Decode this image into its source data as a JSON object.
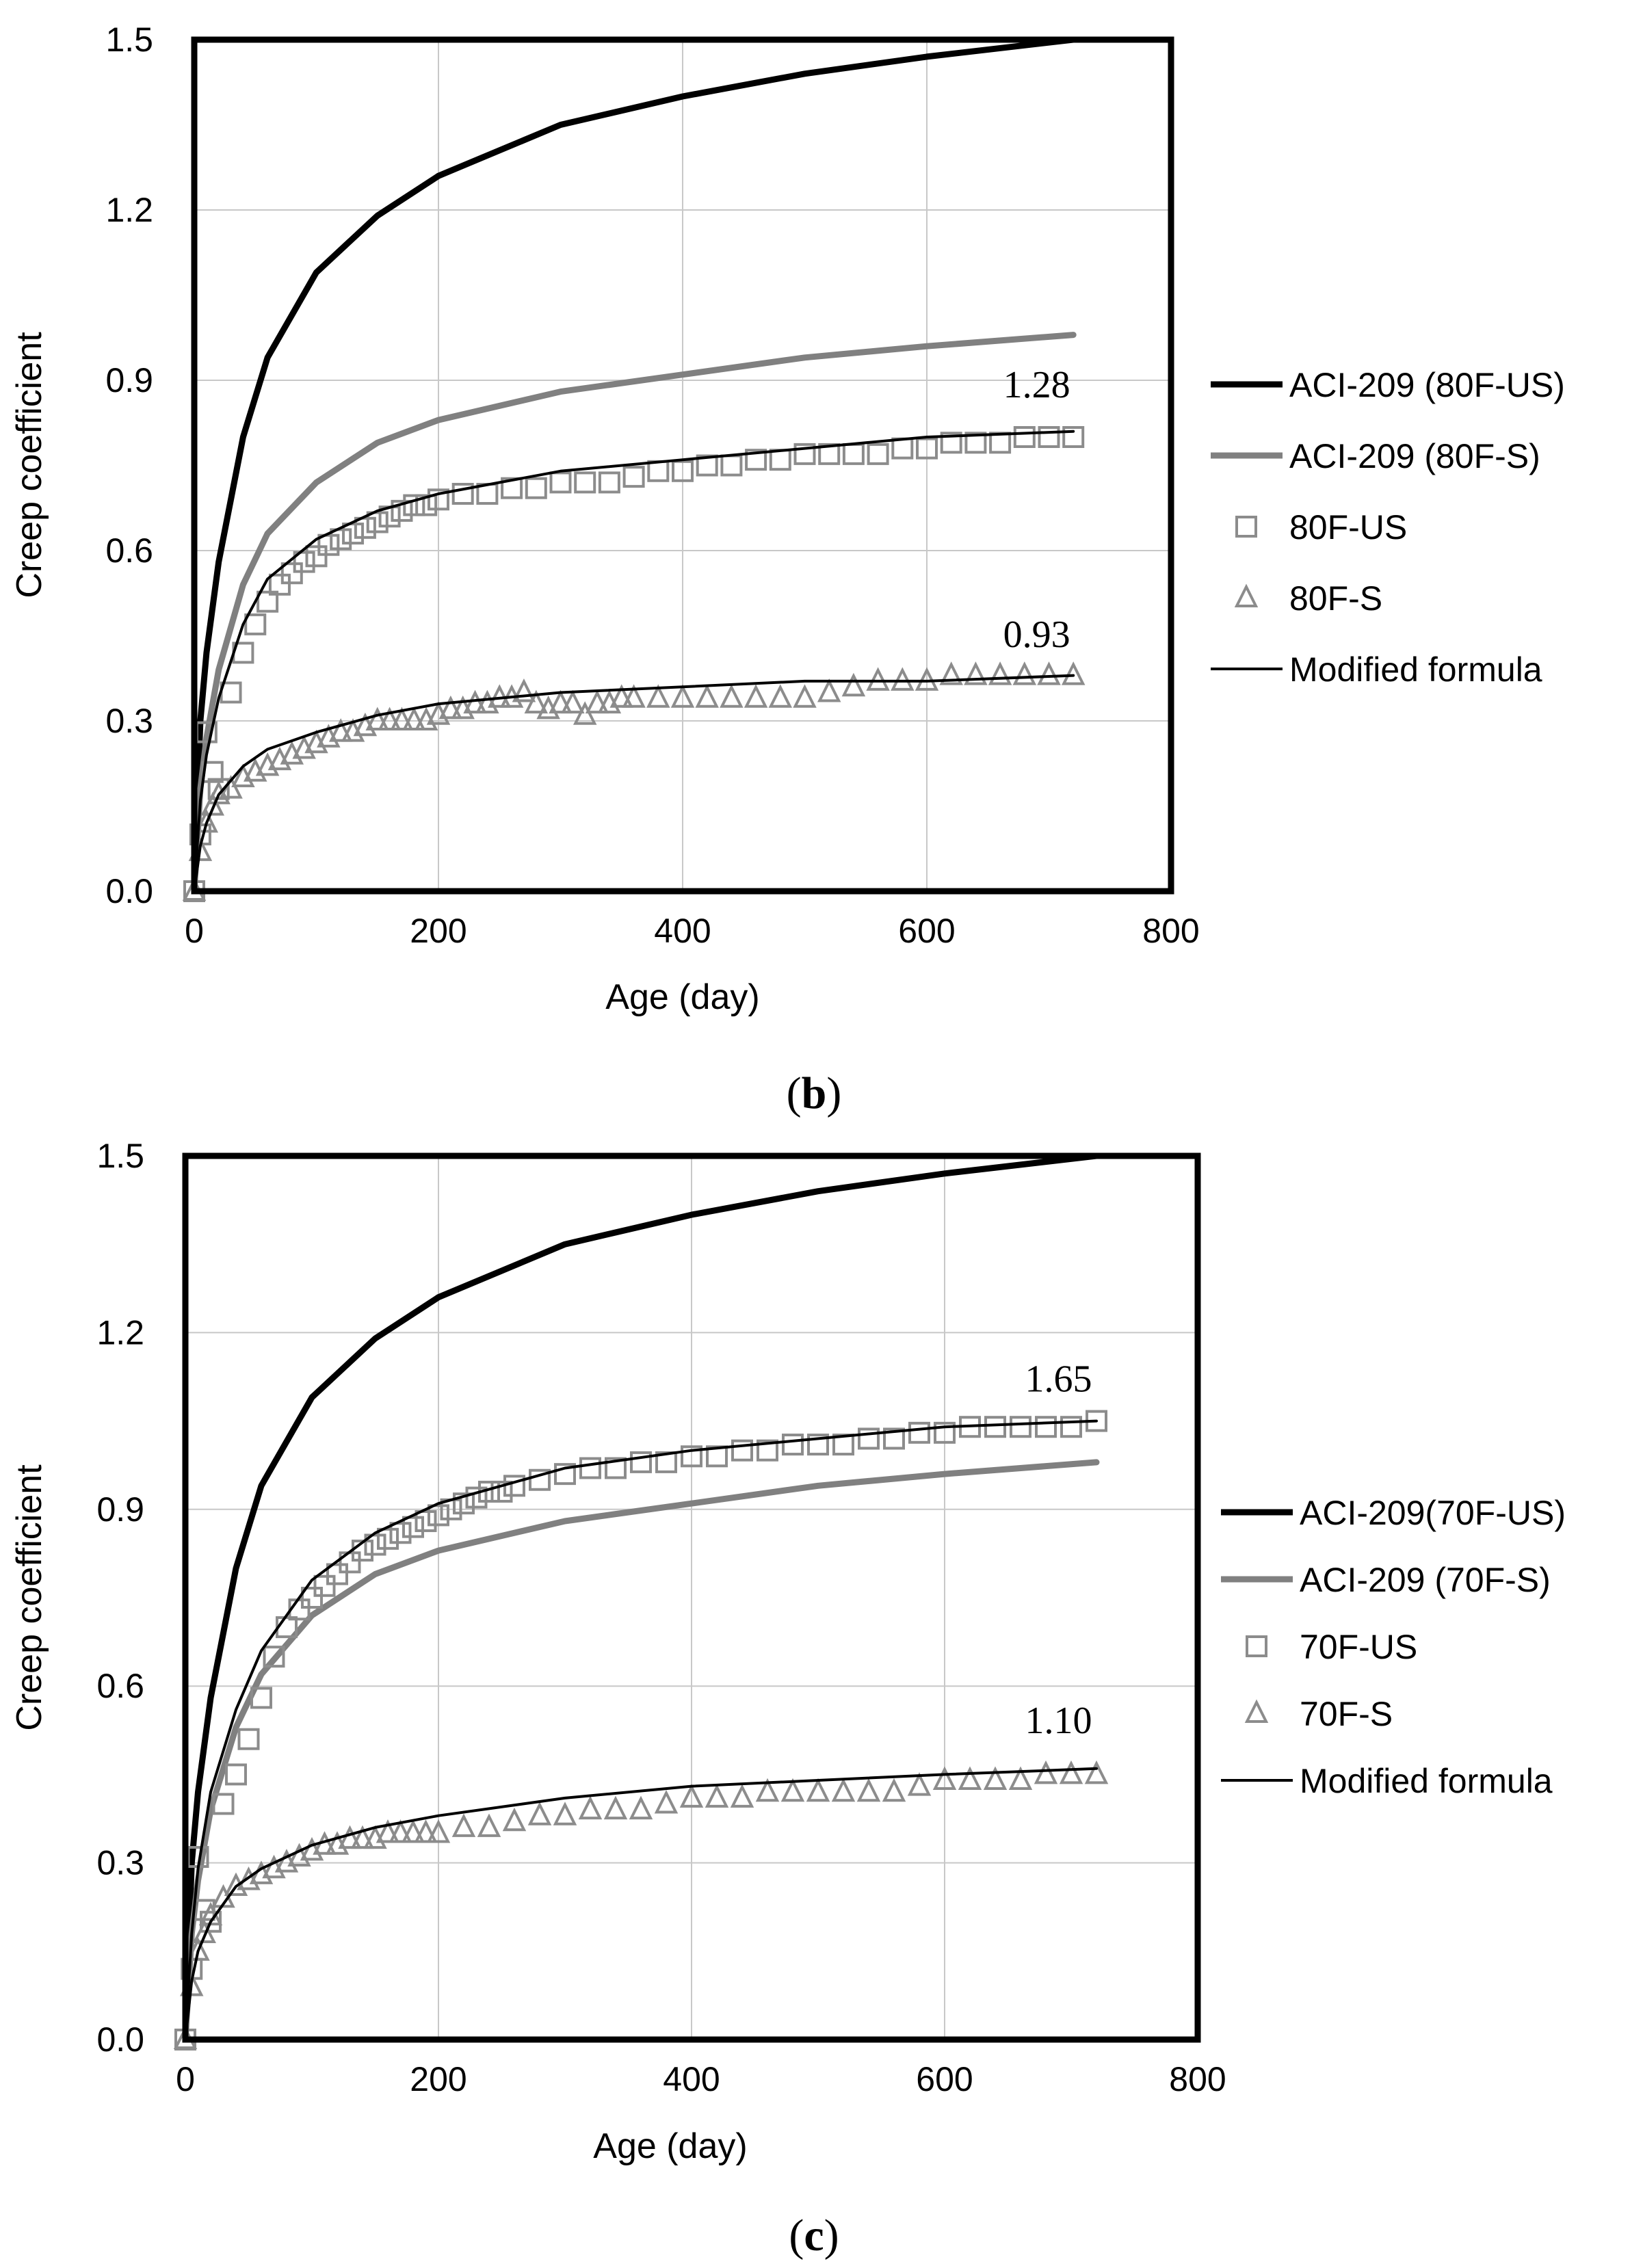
{
  "figure": {
    "panels": [
      {
        "caption_letter": "b",
        "caption_open": "(",
        "caption_close": ")"
      },
      {
        "caption_letter": "c",
        "caption_open": "(",
        "caption_close": ")"
      }
    ]
  },
  "colors": {
    "aci_us": "#000000",
    "aci_s": "#808080",
    "markers": "#8c8c8c",
    "modified": "#000000",
    "grid": "#c8c8c8",
    "frame": "#000000"
  },
  "chart_data": [
    {
      "type": "line",
      "panel": "b",
      "xlabel": "Age (day)",
      "ylabel": "Creep coefficient",
      "xlim": [
        0,
        800
      ],
      "ylim": [
        0,
        1.5
      ],
      "xticks": [
        0,
        200,
        400,
        600,
        800
      ],
      "yticks": [
        0.0,
        0.3,
        0.6,
        0.9,
        1.2,
        1.5
      ],
      "ytick_labels": [
        "0.0",
        "0.3",
        "0.6",
        "0.9",
        "1.2",
        "1.5"
      ],
      "grid": true,
      "legend_position": "right",
      "series": [
        {
          "name": "ACI-209 (80F-US)",
          "kind": "line",
          "style": "thick-black",
          "x": [
            0,
            5,
            10,
            20,
            40,
            60,
            100,
            150,
            200,
            300,
            400,
            500,
            600,
            720
          ],
          "y": [
            0,
            0.3,
            0.42,
            0.58,
            0.8,
            0.94,
            1.09,
            1.19,
            1.26,
            1.35,
            1.4,
            1.44,
            1.47,
            1.5
          ]
        },
        {
          "name": "ACI-209 (80F-S)",
          "kind": "line",
          "style": "thick-gray",
          "x": [
            0,
            5,
            10,
            20,
            40,
            60,
            100,
            150,
            200,
            300,
            400,
            500,
            600,
            720
          ],
          "y": [
            0,
            0.18,
            0.27,
            0.39,
            0.54,
            0.63,
            0.72,
            0.79,
            0.83,
            0.88,
            0.91,
            0.94,
            0.96,
            0.98
          ]
        },
        {
          "name": "80F-US",
          "kind": "markers",
          "marker": "square",
          "x": [
            0,
            5,
            10,
            15,
            20,
            30,
            40,
            50,
            60,
            70,
            80,
            90,
            100,
            110,
            120,
            130,
            140,
            150,
            160,
            170,
            180,
            190,
            200,
            220,
            240,
            260,
            280,
            300,
            320,
            340,
            360,
            380,
            400,
            420,
            440,
            460,
            480,
            500,
            520,
            540,
            560,
            580,
            600,
            620,
            640,
            660,
            680,
            700,
            720
          ],
          "y": [
            0,
            0.1,
            0.28,
            0.21,
            0.18,
            0.35,
            0.42,
            0.47,
            0.51,
            0.54,
            0.56,
            0.58,
            0.59,
            0.61,
            0.62,
            0.63,
            0.64,
            0.65,
            0.66,
            0.67,
            0.68,
            0.68,
            0.69,
            0.7,
            0.7,
            0.71,
            0.71,
            0.72,
            0.72,
            0.72,
            0.73,
            0.74,
            0.74,
            0.75,
            0.75,
            0.76,
            0.76,
            0.77,
            0.77,
            0.77,
            0.77,
            0.78,
            0.78,
            0.79,
            0.79,
            0.79,
            0.8,
            0.8,
            0.8
          ]
        },
        {
          "name": "80F-S",
          "kind": "markers",
          "marker": "triangle",
          "x": [
            0,
            5,
            10,
            15,
            20,
            30,
            40,
            50,
            60,
            70,
            80,
            90,
            100,
            110,
            120,
            130,
            140,
            150,
            160,
            170,
            180,
            190,
            200,
            210,
            220,
            230,
            240,
            250,
            260,
            270,
            280,
            290,
            300,
            310,
            320,
            330,
            340,
            350,
            360,
            380,
            400,
            420,
            440,
            460,
            480,
            500,
            520,
            540,
            560,
            580,
            600,
            620,
            640,
            660,
            680,
            700,
            720
          ],
          "y": [
            0,
            0.07,
            0.12,
            0.15,
            0.17,
            0.18,
            0.2,
            0.21,
            0.22,
            0.23,
            0.24,
            0.25,
            0.26,
            0.27,
            0.28,
            0.28,
            0.29,
            0.3,
            0.3,
            0.3,
            0.3,
            0.3,
            0.31,
            0.32,
            0.32,
            0.33,
            0.33,
            0.34,
            0.34,
            0.35,
            0.33,
            0.32,
            0.33,
            0.33,
            0.31,
            0.33,
            0.33,
            0.34,
            0.34,
            0.34,
            0.34,
            0.34,
            0.34,
            0.34,
            0.34,
            0.34,
            0.35,
            0.36,
            0.37,
            0.37,
            0.37,
            0.38,
            0.38,
            0.38,
            0.38,
            0.38,
            0.38
          ]
        },
        {
          "name": "Modified formula",
          "kind": "line",
          "style": "thin-black",
          "x": [
            0,
            5,
            10,
            20,
            40,
            60,
            100,
            150,
            200,
            300,
            400,
            500,
            600,
            720
          ],
          "y": [
            0,
            0.16,
            0.24,
            0.34,
            0.47,
            0.55,
            0.62,
            0.67,
            0.7,
            0.74,
            0.76,
            0.78,
            0.8,
            0.81
          ]
        },
        {
          "name": "Modified formula (80F-S)",
          "kind": "line",
          "style": "thin-black",
          "legend": false,
          "x": [
            0,
            5,
            10,
            20,
            40,
            60,
            100,
            150,
            200,
            300,
            400,
            500,
            600,
            720
          ],
          "y": [
            0,
            0.08,
            0.12,
            0.17,
            0.22,
            0.25,
            0.28,
            0.31,
            0.33,
            0.35,
            0.36,
            0.37,
            0.37,
            0.38
          ]
        }
      ],
      "annotations": [
        {
          "text": "1.28",
          "x": 690,
          "y": 0.87
        },
        {
          "text": "0.93",
          "x": 690,
          "y": 0.43
        }
      ]
    },
    {
      "type": "line",
      "panel": "c",
      "xlabel": "Age (day)",
      "ylabel": "Creep coefficient",
      "xlim": [
        0,
        800
      ],
      "ylim": [
        0,
        1.5
      ],
      "xticks": [
        0,
        200,
        400,
        600,
        800
      ],
      "yticks": [
        0.0,
        0.3,
        0.6,
        0.9,
        1.2,
        1.5
      ],
      "ytick_labels": [
        "0.0",
        "0.3",
        "0.6",
        "0.9",
        "1.2",
        "1.5"
      ],
      "grid": true,
      "legend_position": "right",
      "series": [
        {
          "name": "ACI-209(70F-US)",
          "kind": "line",
          "style": "thick-black",
          "x": [
            0,
            5,
            10,
            20,
            40,
            60,
            100,
            150,
            200,
            300,
            400,
            500,
            600,
            720
          ],
          "y": [
            0,
            0.3,
            0.42,
            0.58,
            0.8,
            0.94,
            1.09,
            1.19,
            1.26,
            1.35,
            1.4,
            1.44,
            1.47,
            1.5
          ]
        },
        {
          "name": "ACI-209 (70F-S)",
          "kind": "line",
          "style": "thick-gray",
          "x": [
            0,
            5,
            10,
            20,
            40,
            60,
            100,
            150,
            200,
            300,
            400,
            500,
            600,
            720
          ],
          "y": [
            0,
            0.18,
            0.27,
            0.39,
            0.53,
            0.62,
            0.72,
            0.79,
            0.83,
            0.88,
            0.91,
            0.94,
            0.96,
            0.98
          ]
        },
        {
          "name": "70F-US",
          "kind": "markers",
          "marker": "square",
          "x": [
            0,
            5,
            10,
            15,
            20,
            30,
            40,
            50,
            60,
            70,
            80,
            90,
            100,
            110,
            120,
            130,
            140,
            150,
            160,
            170,
            180,
            190,
            200,
            210,
            220,
            230,
            240,
            250,
            260,
            280,
            300,
            320,
            340,
            360,
            380,
            400,
            420,
            440,
            460,
            480,
            500,
            520,
            540,
            560,
            580,
            600,
            620,
            640,
            660,
            680,
            700,
            720
          ],
          "y": [
            0,
            0.12,
            0.31,
            0.22,
            0.2,
            0.4,
            0.45,
            0.51,
            0.58,
            0.65,
            0.7,
            0.73,
            0.75,
            0.77,
            0.79,
            0.81,
            0.83,
            0.84,
            0.85,
            0.86,
            0.87,
            0.88,
            0.89,
            0.9,
            0.91,
            0.92,
            0.93,
            0.93,
            0.94,
            0.95,
            0.96,
            0.97,
            0.97,
            0.98,
            0.98,
            0.99,
            0.99,
            1.0,
            1.0,
            1.01,
            1.01,
            1.01,
            1.02,
            1.02,
            1.03,
            1.03,
            1.04,
            1.04,
            1.04,
            1.04,
            1.04,
            1.05
          ]
        },
        {
          "name": "70F-S",
          "kind": "markers",
          "marker": "triangle",
          "x": [
            0,
            5,
            10,
            15,
            20,
            30,
            40,
            50,
            60,
            70,
            80,
            90,
            100,
            110,
            120,
            130,
            140,
            150,
            160,
            170,
            180,
            190,
            200,
            220,
            240,
            260,
            280,
            300,
            320,
            340,
            360,
            380,
            400,
            420,
            440,
            460,
            480,
            500,
            520,
            540,
            560,
            580,
            600,
            620,
            640,
            660,
            680,
            700,
            720
          ],
          "y": [
            0,
            0.09,
            0.15,
            0.18,
            0.21,
            0.24,
            0.26,
            0.27,
            0.28,
            0.29,
            0.3,
            0.31,
            0.32,
            0.33,
            0.33,
            0.34,
            0.34,
            0.34,
            0.35,
            0.35,
            0.35,
            0.35,
            0.35,
            0.36,
            0.36,
            0.37,
            0.38,
            0.38,
            0.39,
            0.39,
            0.39,
            0.4,
            0.41,
            0.41,
            0.41,
            0.42,
            0.42,
            0.42,
            0.42,
            0.42,
            0.42,
            0.43,
            0.44,
            0.44,
            0.44,
            0.44,
            0.45,
            0.45,
            0.45
          ]
        },
        {
          "name": "Modified formula",
          "kind": "line",
          "style": "thin-black",
          "x": [
            0,
            5,
            10,
            20,
            40,
            60,
            100,
            150,
            200,
            300,
            400,
            500,
            600,
            720
          ],
          "y": [
            0,
            0.18,
            0.29,
            0.42,
            0.56,
            0.66,
            0.78,
            0.86,
            0.91,
            0.97,
            1.0,
            1.02,
            1.04,
            1.05
          ]
        },
        {
          "name": "Modified formula (70F-S)",
          "kind": "line",
          "style": "thin-black",
          "legend": false,
          "x": [
            0,
            5,
            10,
            20,
            40,
            60,
            100,
            150,
            200,
            300,
            400,
            500,
            600,
            720
          ],
          "y": [
            0,
            0.1,
            0.15,
            0.2,
            0.26,
            0.29,
            0.33,
            0.36,
            0.38,
            0.41,
            0.43,
            0.44,
            0.45,
            0.46
          ]
        }
      ],
      "annotations": [
        {
          "text": "1.65",
          "x": 690,
          "y": 1.1
        },
        {
          "text": "1.10",
          "x": 690,
          "y": 0.52
        }
      ]
    }
  ]
}
